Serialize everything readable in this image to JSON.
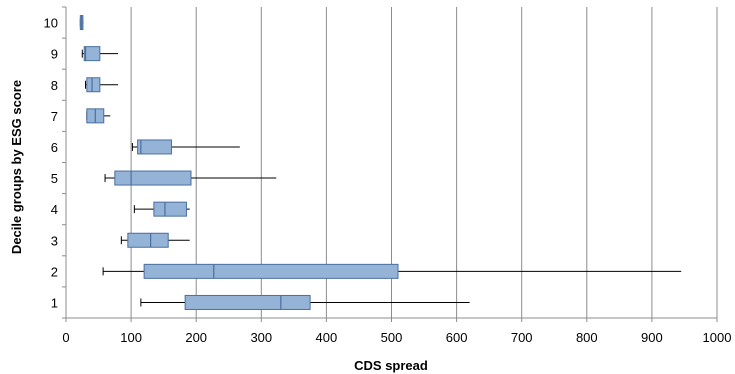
{
  "chart_data": {
    "type": "boxplot",
    "orientation": "horizontal",
    "title": "",
    "xlabel": "CDS spread",
    "ylabel": "Decile groups by ESG score",
    "xlim": [
      0,
      1000
    ],
    "x_ticks": [
      0,
      100,
      200,
      300,
      400,
      500,
      600,
      700,
      800,
      900,
      1000
    ],
    "grid": "vertical",
    "legend": "none",
    "colors": {
      "box_fill": "#95b3d7",
      "box_stroke": "#4a6f9f",
      "whisker": "#000000",
      "grid": "#8c8c8c"
    },
    "categories": [
      "1",
      "2",
      "3",
      "4",
      "5",
      "6",
      "7",
      "8",
      "9",
      "10"
    ],
    "boxes": [
      {
        "group": "1",
        "min": 115,
        "q1": 183,
        "median": 330,
        "q3": 375,
        "max": 620
      },
      {
        "group": "2",
        "min": 57,
        "q1": 120,
        "median": 227,
        "q3": 510,
        "max": 945
      },
      {
        "group": "3",
        "min": 85,
        "q1": 95,
        "median": 130,
        "q3": 157,
        "max": 190
      },
      {
        "group": "4",
        "min": 105,
        "q1": 135,
        "median": 152,
        "q3": 185,
        "max": 190
      },
      {
        "group": "5",
        "min": 60,
        "q1": 75,
        "median": 100,
        "q3": 192,
        "max": 323
      },
      {
        "group": "6",
        "min": 102,
        "q1": 110,
        "median": 115,
        "q3": 162,
        "max": 267
      },
      {
        "group": "7",
        "min": 32,
        "q1": 32,
        "median": 45,
        "q3": 58,
        "max": 68
      },
      {
        "group": "8",
        "min": 30,
        "q1": 32,
        "median": 40,
        "q3": 52,
        "max": 80
      },
      {
        "group": "9",
        "min": 25,
        "q1": 28,
        "median": 30,
        "q3": 52,
        "max": 80
      },
      {
        "group": "10",
        "min": 22,
        "q1": 22,
        "median": 24,
        "q3": 26,
        "max": 27
      }
    ]
  }
}
